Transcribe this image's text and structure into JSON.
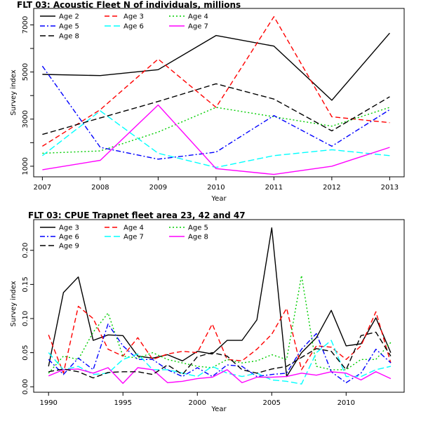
{
  "chart_data": [
    {
      "type": "line",
      "title": "FLT 03: Acoustic Fleet   N of individuals, millions",
      "xlabel": "Year",
      "ylabel": "Survey index",
      "x": [
        2007,
        2008,
        2009,
        2010,
        2011,
        2012,
        2013
      ],
      "xlim": [
        2006.85,
        2013.25
      ],
      "ylim": [
        550,
        7700
      ],
      "xticks": [
        "2007",
        "2008",
        "2009",
        "2010",
        "2011",
        "2012",
        "2013"
      ],
      "yticks": [
        1000,
        3000,
        5000,
        7000
      ],
      "ytick_labels": [
        "1000",
        "3000",
        "5000",
        "7000"
      ],
      "yminor": [
        2000,
        4000,
        6000
      ],
      "legend_placement": "top-left",
      "legend_columns": 3,
      "series": [
        {
          "name": "Age 2",
          "color": "#000000",
          "dash": "",
          "values": [
            4900,
            4850,
            5100,
            6550,
            6100,
            3800,
            6650
          ]
        },
        {
          "name": "Age 3",
          "color": "#ff0000",
          "dash": "7,4",
          "values": [
            1850,
            3400,
            5550,
            3500,
            7350,
            3100,
            2850
          ]
        },
        {
          "name": "Age 4",
          "color": "#00cd00",
          "dash": "2,3",
          "values": [
            1550,
            1650,
            2450,
            3500,
            3100,
            2700,
            3500
          ]
        },
        {
          "name": "Age 5",
          "color": "#0000ff",
          "dash": "7,3,2,3",
          "values": [
            5250,
            1800,
            1300,
            1600,
            3150,
            1850,
            3400
          ]
        },
        {
          "name": "Age 6",
          "color": "#00ffff",
          "dash": "9,4",
          "values": [
            1450,
            3350,
            1550,
            950,
            1450,
            1700,
            1450
          ]
        },
        {
          "name": "Age 7",
          "color": "#ff00ff",
          "dash": "",
          "values": [
            850,
            1250,
            3600,
            900,
            650,
            1000,
            1800
          ]
        },
        {
          "name": "Age 8",
          "color": "#000000",
          "dash": "8,4",
          "values": [
            2350,
            3050,
            3750,
            4500,
            3850,
            2500,
            3950
          ]
        }
      ]
    },
    {
      "type": "line",
      "title": "FLT 03: CPUE Trapnet fleet area 23, 42 and 47",
      "xlabel": "Year",
      "ylabel": "Survey index",
      "x": [
        1990,
        1991,
        1992,
        1993,
        1994,
        1995,
        1996,
        1997,
        1998,
        1999,
        2000,
        2001,
        2002,
        2003,
        2004,
        2005,
        2006,
        2007,
        2008,
        2009,
        2010,
        2011,
        2012,
        2013
      ],
      "xlim": [
        1989.0,
        2013.9
      ],
      "ylim": [
        -0.008,
        0.245
      ],
      "xticks": [
        "1990",
        "1995",
        "2000",
        "2005",
        "2010"
      ],
      "xtick_values": [
        1990,
        1995,
        2000,
        2005,
        2010
      ],
      "yticks": [
        0.0,
        0.05,
        0.1,
        0.15,
        0.2
      ],
      "ytick_labels": [
        "0.00",
        "0.05",
        "0.10",
        "0.15",
        "0.20"
      ],
      "legend_placement": "top-left",
      "legend_columns": 3,
      "series": [
        {
          "name": "Age 3",
          "color": "#000000",
          "dash": "",
          "values": [
            0.03,
            0.138,
            0.161,
            0.068,
            0.076,
            0.075,
            0.045,
            0.042,
            0.047,
            0.038,
            0.052,
            0.048,
            0.068,
            0.068,
            0.098,
            0.233,
            0.015,
            0.05,
            0.072,
            0.112,
            0.06,
            0.063,
            0.101,
            0.05
          ]
        },
        {
          "name": "Age 4",
          "color": "#ff0000",
          "dash": "7,4",
          "values": [
            0.076,
            0.02,
            0.118,
            0.1,
            0.055,
            0.045,
            0.072,
            0.04,
            0.048,
            0.052,
            0.05,
            0.092,
            0.04,
            0.038,
            0.055,
            0.077,
            0.115,
            0.025,
            0.06,
            0.058,
            0.04,
            0.06,
            0.11,
            0.035
          ]
        },
        {
          "name": "Age 5",
          "color": "#00cd00",
          "dash": "2,3",
          "values": [
            0.02,
            0.045,
            0.04,
            0.08,
            0.108,
            0.045,
            0.042,
            0.05,
            0.04,
            0.035,
            0.03,
            0.028,
            0.04,
            0.035,
            0.038,
            0.047,
            0.04,
            0.163,
            0.03,
            0.025,
            0.025,
            0.04,
            0.04,
            0.065
          ]
        },
        {
          "name": "Age 6",
          "color": "#0000ff",
          "dash": "7,3,2,3",
          "values": [
            0.04,
            0.018,
            0.042,
            0.025,
            0.092,
            0.06,
            0.04,
            0.04,
            0.025,
            0.015,
            0.028,
            0.015,
            0.032,
            0.03,
            0.015,
            0.018,
            0.02,
            0.055,
            0.078,
            0.022,
            0.006,
            0.02,
            0.055,
            0.035
          ]
        },
        {
          "name": "Age 7",
          "color": "#00ffff",
          "dash": "9,4",
          "values": [
            0.05,
            0.025,
            0.03,
            0.018,
            0.02,
            0.04,
            0.048,
            0.025,
            0.025,
            0.02,
            0.015,
            0.03,
            0.02,
            0.015,
            0.02,
            0.01,
            0.008,
            0.004,
            0.05,
            0.068,
            0.015,
            0.015,
            0.025,
            0.03
          ]
        },
        {
          "name": "Age 8",
          "color": "#ff00ff",
          "dash": "",
          "values": [
            0.016,
            0.025,
            0.026,
            0.02,
            0.028,
            0.005,
            0.028,
            0.025,
            0.006,
            0.008,
            0.012,
            0.014,
            0.025,
            0.006,
            0.014,
            0.014,
            0.015,
            0.02,
            0.017,
            0.022,
            0.02,
            0.01,
            0.022,
            0.012
          ]
        },
        {
          "name": "Age 9",
          "color": "#000000",
          "dash": "8,4",
          "values": [
            0.022,
            0.026,
            0.022,
            0.013,
            0.021,
            0.022,
            0.022,
            0.018,
            0.032,
            0.018,
            0.044,
            0.05,
            0.045,
            0.025,
            0.02,
            0.026,
            0.03,
            0.043,
            0.056,
            0.052,
            0.025,
            0.075,
            0.08,
            0.045
          ]
        }
      ]
    }
  ]
}
